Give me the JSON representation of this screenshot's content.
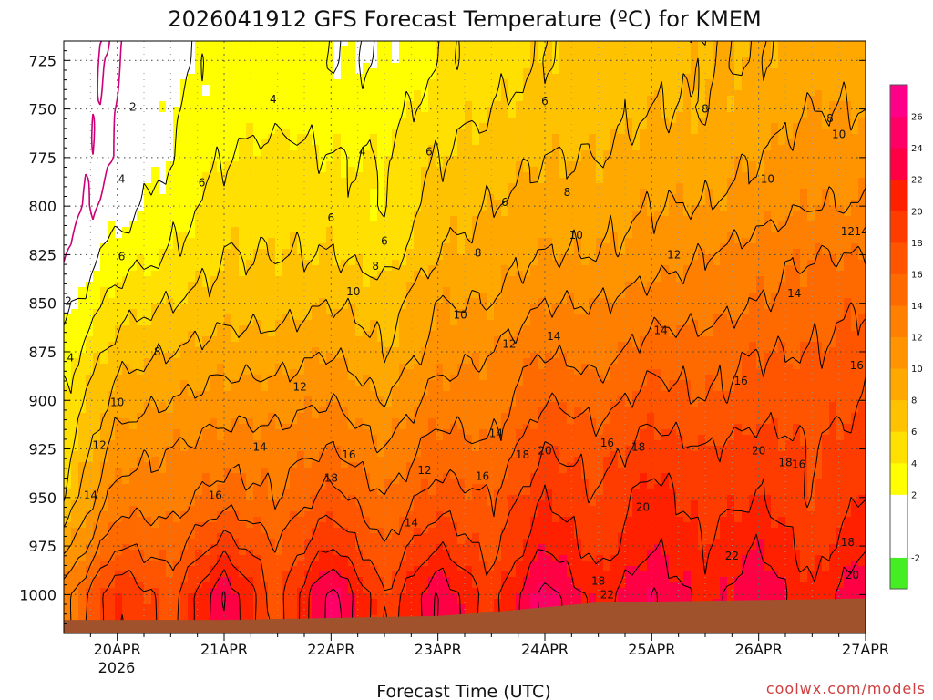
{
  "chart_data": {
    "type": "heatmap",
    "title": "2026041912 GFS Forecast Temperature (ºC) for KMEM",
    "xlabel": "Forecast Time (UTC)",
    "ylabel": "",
    "credit": "coolwx.com/models",
    "y_axis": {
      "scale": "pressure (hPa), inverted",
      "range": [
        1020,
        715
      ],
      "ticks": [
        725,
        750,
        775,
        800,
        825,
        850,
        875,
        900,
        925,
        950,
        975,
        1000
      ]
    },
    "x_axis": {
      "range_hours_from_20apr00z": [
        -12,
        168
      ],
      "tick_hours": [
        0,
        24,
        48,
        72,
        96,
        120,
        144,
        168
      ],
      "tick_labels": [
        "20APR",
        "21APR",
        "22APR",
        "23APR",
        "24APR",
        "25APR",
        "26APR",
        "27APR"
      ],
      "year_label": "2026"
    },
    "colorbar": {
      "levels": [
        -4,
        -2,
        0,
        2,
        4,
        6,
        8,
        10,
        12,
        14,
        16,
        18,
        20,
        22,
        24,
        26,
        28
      ],
      "tick_labels": [
        "-2",
        "2",
        "4",
        "6",
        "8",
        "10",
        "12",
        "14",
        "16",
        "18",
        "20",
        "22",
        "24",
        "26"
      ],
      "colors": [
        "#44ee22",
        "#ffffff",
        "#ffffff",
        "#ffff00",
        "#ffe000",
        "#ffc200",
        "#ffa900",
        "#ff9300",
        "#ff7f00",
        "#ff6a00",
        "#ff5500",
        "#ff3c00",
        "#ff2000",
        "#ff0044",
        "#ff0066",
        "#ff0088"
      ]
    },
    "contour_interval_c": 2,
    "freezing_line_c": 0,
    "surface_pressure_hpa": [
      {
        "hour": -12,
        "p": 1013
      },
      {
        "hour": 24,
        "p": 1013
      },
      {
        "hour": 72,
        "p": 1011
      },
      {
        "hour": 84,
        "p": 1009
      },
      {
        "hour": 108,
        "p": 1004
      },
      {
        "hour": 168,
        "p": 1002
      }
    ],
    "temperature_profiles": {
      "pressure_levels": [
        1000,
        975,
        950,
        925,
        900,
        875,
        850,
        825,
        800,
        775,
        750,
        725
      ],
      "forecast_hours": [
        -12,
        0,
        12,
        24,
        36,
        48,
        60,
        72,
        84,
        96,
        108,
        120,
        132,
        144,
        156,
        168
      ],
      "temps_c": [
        [
          13,
          9,
          6,
          5,
          4,
          3,
          1,
          0,
          -1,
          -1,
          -1,
          -1
        ],
        [
          20,
          16,
          13,
          11,
          9,
          7,
          5,
          3,
          1,
          0,
          0,
          0
        ],
        [
          17,
          15,
          13,
          12,
          10,
          8,
          6,
          4,
          3,
          2,
          2,
          1
        ],
        [
          24,
          19,
          15,
          13,
          11,
          9,
          7,
          6,
          5,
          4,
          3,
          3
        ],
        [
          17,
          16,
          14,
          13,
          11,
          9,
          7,
          6,
          5,
          5,
          3,
          3
        ],
        [
          25,
          20,
          17,
          14,
          12,
          10,
          8,
          6,
          5,
          4,
          3,
          2
        ],
        [
          18,
          16,
          14,
          12,
          10,
          8,
          7,
          5,
          4,
          4,
          3,
          2
        ],
        [
          24,
          20,
          17,
          15,
          13,
          11,
          10,
          8,
          7,
          6,
          5,
          4
        ],
        [
          19,
          17,
          16,
          14,
          13,
          12,
          10,
          9,
          8,
          7,
          6,
          5
        ],
        [
          25,
          22,
          20,
          18,
          16,
          14,
          12,
          10,
          9,
          8,
          7,
          6
        ],
        [
          21,
          19,
          18,
          17,
          15,
          13,
          12,
          10,
          9,
          8,
          7,
          7
        ],
        [
          24,
          22,
          21,
          19,
          17,
          15,
          13,
          11,
          10,
          9,
          8,
          7
        ],
        [
          21,
          20,
          19,
          18,
          16,
          15,
          13,
          12,
          10,
          9,
          8,
          8
        ],
        [
          24,
          22,
          20,
          19,
          17,
          16,
          14,
          13,
          11,
          10,
          9,
          8
        ],
        [
          20,
          19,
          18,
          18,
          17,
          16,
          15,
          14,
          12,
          11,
          10,
          9
        ],
        [
          24,
          22,
          20,
          19,
          18,
          17,
          16,
          14,
          12,
          11,
          10,
          9
        ]
      ]
    },
    "contour_labels": [
      {
        "text": "2",
        "hour": -11,
        "p": 849
      },
      {
        "text": "2",
        "hour": 3.5,
        "p": 749
      },
      {
        "text": "4",
        "hour": -10.5,
        "p": 878
      },
      {
        "text": "4",
        "hour": 1,
        "p": 786
      },
      {
        "text": "4",
        "hour": 35,
        "p": 745
      },
      {
        "text": "4",
        "hour": 55,
        "p": 772
      },
      {
        "text": "6",
        "hour": 1,
        "p": 826
      },
      {
        "text": "6",
        "hour": 19,
        "p": 788
      },
      {
        "text": "6",
        "hour": 48,
        "p": 806
      },
      {
        "text": "6",
        "hour": 60,
        "p": 818
      },
      {
        "text": "6",
        "hour": 70,
        "p": 772
      },
      {
        "text": "6",
        "hour": 87,
        "p": 798
      },
      {
        "text": "6",
        "hour": 96,
        "p": 746
      },
      {
        "text": "8",
        "hour": 9,
        "p": 875
      },
      {
        "text": "8",
        "hour": 58,
        "p": 831
      },
      {
        "text": "8",
        "hour": 81,
        "p": 824
      },
      {
        "text": "8",
        "hour": 101,
        "p": 793
      },
      {
        "text": "8",
        "hour": 132,
        "p": 750
      },
      {
        "text": "8",
        "hour": 160,
        "p": 755
      },
      {
        "text": "10",
        "hour": 0,
        "p": 901
      },
      {
        "text": "10",
        "hour": 53,
        "p": 844
      },
      {
        "text": "10",
        "hour": 77,
        "p": 856
      },
      {
        "text": "10",
        "hour": 103,
        "p": 815
      },
      {
        "text": "10",
        "hour": 146,
        "p": 786
      },
      {
        "text": "10",
        "hour": 162,
        "p": 763
      },
      {
        "text": "12",
        "hour": -4,
        "p": 923
      },
      {
        "text": "12",
        "hour": 41,
        "p": 893
      },
      {
        "text": "12",
        "hour": 69,
        "p": 936
      },
      {
        "text": "12",
        "hour": 88,
        "p": 871
      },
      {
        "text": "12",
        "hour": 125,
        "p": 825
      },
      {
        "text": "12",
        "hour": 164,
        "p": 813
      },
      {
        "text": "14",
        "hour": -6,
        "p": 949
      },
      {
        "text": "14",
        "hour": 32,
        "p": 924
      },
      {
        "text": "14",
        "hour": 66,
        "p": 963
      },
      {
        "text": "14",
        "hour": 85,
        "p": 917
      },
      {
        "text": "14",
        "hour": 98,
        "p": 867
      },
      {
        "text": "14",
        "hour": 122,
        "p": 864
      },
      {
        "text": "14",
        "hour": 152,
        "p": 845
      },
      {
        "text": "14",
        "hour": 167,
        "p": 813
      },
      {
        "text": "16",
        "hour": 22,
        "p": 949
      },
      {
        "text": "16",
        "hour": 52,
        "p": 928
      },
      {
        "text": "16",
        "hour": 82,
        "p": 939
      },
      {
        "text": "16",
        "hour": 110,
        "p": 922
      },
      {
        "text": "16",
        "hour": 140,
        "p": 890
      },
      {
        "text": "16",
        "hour": 153,
        "p": 933
      },
      {
        "text": "16",
        "hour": 166,
        "p": 882
      },
      {
        "text": "18",
        "hour": 48,
        "p": 940
      },
      {
        "text": "18",
        "hour": 91,
        "p": 928
      },
      {
        "text": "18",
        "hour": 117,
        "p": 924
      },
      {
        "text": "18",
        "hour": 150,
        "p": 932
      },
      {
        "text": "18",
        "hour": 108,
        "p": 993
      },
      {
        "text": "18",
        "hour": 164,
        "p": 973
      },
      {
        "text": "20",
        "hour": 96,
        "p": 926
      },
      {
        "text": "20",
        "hour": 118,
        "p": 955
      },
      {
        "text": "20",
        "hour": 144,
        "p": 926
      },
      {
        "text": "20",
        "hour": 165,
        "p": 990
      },
      {
        "text": "22",
        "hour": 110,
        "p": 1000
      },
      {
        "text": "22",
        "hour": 138,
        "p": 980
      }
    ]
  }
}
